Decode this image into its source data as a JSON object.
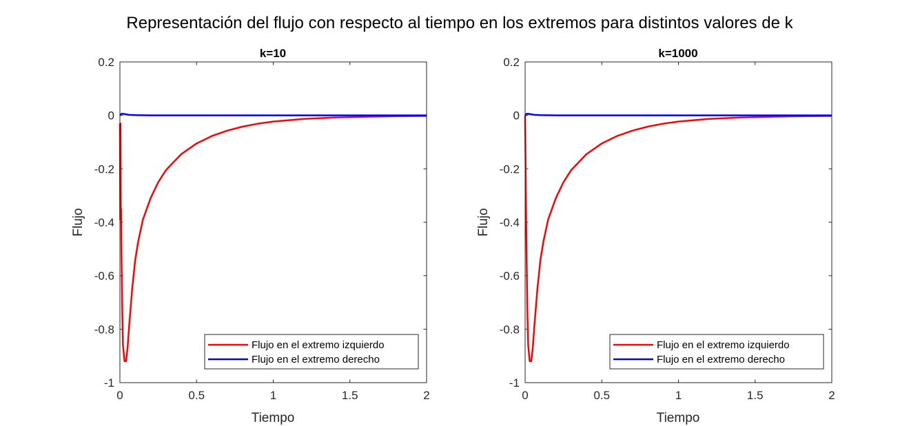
{
  "figure_title": "Representación del flujo con respecto al tiempo en los extremos para distintos valores de k",
  "colors": {
    "left_series": "#ff0000",
    "right_series": "#0000ff",
    "axis": "#262626"
  },
  "chart_data": [
    {
      "type": "line",
      "title": "k=10",
      "xlabel": "Tiempo",
      "ylabel": "Flujo",
      "xlim": [
        0,
        2
      ],
      "ylim": [
        -1,
        0.2
      ],
      "xticks": [
        0,
        0.5,
        1,
        1.5,
        2
      ],
      "xtick_labels": [
        "0",
        "0.5",
        "1",
        "1.5",
        "2"
      ],
      "yticks": [
        -1,
        -0.8,
        -0.6,
        -0.4,
        -0.2,
        0,
        0.2
      ],
      "ytick_labels": [
        "-1",
        "-0.8",
        "-0.6",
        "-0.4",
        "-0.2",
        "0",
        "0.2"
      ],
      "grid": false,
      "legend_position": "bottom-right",
      "series": [
        {
          "name": "Flujo en el extremo izquierdo",
          "color": "#ff0000",
          "x": [
            0,
            0.002,
            0.004,
            0.006,
            0.008,
            0.01,
            0.015,
            0.02,
            0.03,
            0.04,
            0.05,
            0.06,
            0.08,
            0.1,
            0.12,
            0.15,
            0.2,
            0.25,
            0.3,
            0.4,
            0.5,
            0.6,
            0.7,
            0.8,
            0.9,
            1.0,
            1.2,
            1.4,
            1.6,
            1.8,
            2.0
          ],
          "y": [
            -0.03,
            -0.39,
            -0.03,
            -0.38,
            -0.35,
            -0.5,
            -0.72,
            -0.86,
            -0.92,
            -0.92,
            -0.87,
            -0.79,
            -0.65,
            -0.54,
            -0.47,
            -0.39,
            -0.31,
            -0.25,
            -0.205,
            -0.145,
            -0.105,
            -0.077,
            -0.057,
            -0.042,
            -0.031,
            -0.023,
            -0.013,
            -0.008,
            -0.005,
            -0.003,
            -0.002
          ]
        },
        {
          "name": "Flujo en el extremo derecho",
          "color": "#0000ff",
          "x": [
            0,
            0.01,
            0.02,
            0.04,
            0.06,
            0.1,
            0.2,
            0.5,
            1.0,
            1.5,
            2.0
          ],
          "y": [
            0,
            0.006,
            0.006,
            0.004,
            0.002,
            0.001,
            0,
            0,
            0,
            0,
            0
          ]
        }
      ]
    },
    {
      "type": "line",
      "title": "k=1000",
      "xlabel": "Tiempo",
      "ylabel": "Flujo",
      "xlim": [
        0,
        2
      ],
      "ylim": [
        -1,
        0.2
      ],
      "xticks": [
        0,
        0.5,
        1,
        1.5,
        2
      ],
      "xtick_labels": [
        "0",
        "0.5",
        "1",
        "1.5",
        "2"
      ],
      "yticks": [
        -1,
        -0.8,
        -0.6,
        -0.4,
        -0.2,
        0,
        0.2
      ],
      "ytick_labels": [
        "-1",
        "-0.8",
        "-0.6",
        "-0.4",
        "-0.2",
        "0",
        "0.2"
      ],
      "grid": false,
      "legend_position": "bottom-right",
      "series": [
        {
          "name": "Flujo en el extremo izquierdo",
          "color": "#ff0000",
          "x": [
            0,
            0.005,
            0.01,
            0.015,
            0.02,
            0.03,
            0.04,
            0.05,
            0.06,
            0.08,
            0.1,
            0.12,
            0.15,
            0.2,
            0.25,
            0.3,
            0.4,
            0.5,
            0.6,
            0.7,
            0.8,
            0.9,
            1.0,
            1.2,
            1.4,
            1.6,
            1.8,
            2.0
          ],
          "y": [
            0,
            -0.3,
            -0.55,
            -0.74,
            -0.86,
            -0.92,
            -0.92,
            -0.87,
            -0.79,
            -0.65,
            -0.54,
            -0.47,
            -0.39,
            -0.31,
            -0.25,
            -0.205,
            -0.145,
            -0.105,
            -0.077,
            -0.057,
            -0.042,
            -0.031,
            -0.023,
            -0.013,
            -0.008,
            -0.005,
            -0.003,
            -0.002
          ]
        },
        {
          "name": "Flujo en el extremo derecho",
          "color": "#0000ff",
          "x": [
            0,
            0.01,
            0.02,
            0.04,
            0.06,
            0.1,
            0.2,
            0.5,
            1.0,
            1.5,
            2.0
          ],
          "y": [
            0,
            0.006,
            0.006,
            0.004,
            0.002,
            0.001,
            0,
            0,
            0,
            0,
            0
          ]
        }
      ]
    }
  ]
}
